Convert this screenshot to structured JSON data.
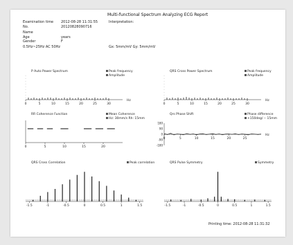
{
  "report": {
    "title": "Multi-functional Spectrum Analyzing ECG Report",
    "exam_label": "Examination time",
    "exam_value": "2012-08-28 11:31:55",
    "no_label": "No.",
    "no_value": "20120828090716",
    "name_label": "Name",
    "age_label": "Age",
    "age_value": "years",
    "gender_label": "Gender",
    "gender_value": "F",
    "interpretation_label": "Interpretation:",
    "filter_label": "0.5Hz~25Hz AC 50Hz",
    "calibration_label": "Gx: 5mm/mV Gy: 5mm/mV",
    "print_time": "Printing time: 2012-08-28 11:31:32"
  },
  "chart_data": [
    {
      "type": "bar",
      "title": "P Auto Power Spectrum",
      "legend": [
        "Peak frequency",
        "Amplitude"
      ],
      "xlim": [
        0,
        35
      ],
      "xlabel": "Hz",
      "x": [
        1,
        2,
        3,
        4,
        5,
        6,
        7,
        8,
        9,
        10,
        11,
        12,
        13,
        14,
        15,
        16,
        17,
        18,
        19,
        20,
        21,
        22,
        23,
        24,
        25,
        26,
        27,
        28,
        29,
        30
      ],
      "values": [
        3,
        2,
        3,
        2,
        2,
        3,
        2,
        3,
        3,
        2,
        3,
        2,
        2,
        3,
        2,
        3,
        2,
        2,
        3,
        2,
        2,
        3,
        2,
        2,
        3,
        2,
        2,
        2,
        3,
        2
      ],
      "ticks": [
        {
          "value": 0,
          "label": "0"
        },
        {
          "value": 5,
          "label": "5"
        },
        {
          "value": 10,
          "label": "10"
        },
        {
          "value": 15,
          "label": "15"
        },
        {
          "value": 20,
          "label": "20"
        },
        {
          "value": 25,
          "label": "25"
        },
        {
          "value": 30,
          "label": "30"
        }
      ]
    },
    {
      "type": "bar",
      "title": "QRS Cross Power Spectrum",
      "legend": [
        "Peak frequency",
        "Amplitude"
      ],
      "xlim": [
        0,
        35
      ],
      "xlabel": "Hz",
      "x": [
        1,
        2,
        3,
        4,
        5,
        6,
        7,
        8,
        9,
        10,
        11,
        12,
        13,
        14,
        15,
        16,
        17,
        18,
        19,
        20,
        21,
        22,
        23,
        24,
        25,
        26,
        27,
        28,
        29,
        30
      ],
      "values": [
        3,
        2,
        3,
        2,
        3,
        2,
        3,
        4,
        3,
        2,
        3,
        2,
        3,
        2,
        2,
        3,
        2,
        2,
        3,
        2,
        2,
        2,
        3,
        2,
        2,
        2,
        2,
        3,
        2,
        2
      ],
      "ticks": [
        {
          "value": 0,
          "label": "0"
        },
        {
          "value": 5,
          "label": "5"
        },
        {
          "value": 10,
          "label": "10"
        },
        {
          "value": 15,
          "label": "15"
        },
        {
          "value": 20,
          "label": "20"
        },
        {
          "value": 25,
          "label": "25"
        },
        {
          "value": 30,
          "label": "30"
        }
      ]
    },
    {
      "type": "line",
      "title": "RR Coherence Function",
      "legend": [
        "Mean Coherence",
        "Hz: 30mm/s  Rh: 15mm"
      ],
      "xlim": [
        0,
        25
      ],
      "ylim": [
        0,
        1
      ],
      "segments": [
        [
          0.5,
          2
        ],
        [
          3,
          4.5
        ],
        [
          5.5,
          7
        ],
        [
          9,
          11
        ],
        [
          15,
          17
        ],
        [
          18,
          20
        ],
        [
          21,
          23
        ]
      ],
      "level": 0.5,
      "ticks": [
        {
          "value": 0,
          "label": "0"
        },
        {
          "value": 5,
          "label": "5"
        },
        {
          "value": 10,
          "label": "10"
        },
        {
          "value": 15,
          "label": "15"
        },
        {
          "value": 20,
          "label": "20"
        }
      ]
    },
    {
      "type": "line",
      "title": "Qrs Phase Shift",
      "legend": [
        "Phase difference",
        "+150deg/ -- 15mm"
      ],
      "xlim": [
        0,
        30
      ],
      "ylim": [
        -180,
        180
      ],
      "xlabel": "Hz",
      "yticks": [
        {
          "value": 180,
          "label": "180"
        },
        {
          "value": 90,
          "label": "90"
        },
        {
          "value": 0,
          "label": "0"
        },
        {
          "value": -90,
          "label": "-90"
        },
        {
          "value": -180,
          "label": "-180"
        }
      ],
      "x": [
        0,
        1,
        2,
        3,
        4,
        5,
        6,
        7,
        8,
        9,
        10,
        11,
        12,
        13,
        14,
        15,
        16,
        17,
        18,
        19,
        20,
        21,
        22,
        23,
        24,
        25,
        26,
        27,
        28,
        29,
        30
      ],
      "values": [
        10,
        -5,
        15,
        -10,
        5,
        0,
        -8,
        12,
        -3,
        6,
        -10,
        4,
        8,
        -6,
        2,
        10,
        -4,
        6,
        -8,
        3,
        5,
        -2,
        8,
        -6,
        4,
        0,
        -10,
        6,
        2,
        -4,
        3
      ],
      "ticks": [
        {
          "value": 0,
          "label": "0"
        },
        {
          "value": 5,
          "label": "5"
        },
        {
          "value": 10,
          "label": "10"
        },
        {
          "value": 15,
          "label": "15"
        },
        {
          "value": 20,
          "label": "20"
        },
        {
          "value": 25,
          "label": "25"
        }
      ]
    },
    {
      "type": "bar",
      "title": "QRS Cross Correlation",
      "legend": [
        "Peak correlation"
      ],
      "xlim": [
        -1.6,
        1.6
      ],
      "x": [
        -1.4,
        -1.2,
        -1.0,
        -0.8,
        -0.6,
        -0.4,
        -0.2,
        0,
        0.2,
        0.4,
        0.6,
        0.8,
        1.0,
        1.2,
        1.4
      ],
      "values": [
        0.05,
        0.18,
        0.3,
        0.4,
        0.55,
        0.7,
        0.85,
        0.95,
        0.8,
        0.65,
        0.5,
        0.35,
        0.22,
        0.12,
        0.05
      ],
      "ticks": [
        {
          "value": -1.5,
          "label": "-1.5"
        },
        {
          "value": -1,
          "label": "-1"
        },
        {
          "value": -0.5,
          "label": "-0.5"
        },
        {
          "value": 0,
          "label": "0"
        },
        {
          "value": 0.5,
          "label": "0.5"
        },
        {
          "value": 1,
          "label": "1"
        },
        {
          "value": 1.5,
          "label": "1.5"
        }
      ]
    },
    {
      "type": "bar",
      "title": "QRS Pulse Symmetry",
      "legend": [
        "Symmetry"
      ],
      "xlim": [
        -1.6,
        1.6
      ],
      "x": [
        -1.4,
        -1.1,
        -0.8,
        -0.5,
        -0.3,
        -0.1,
        0,
        0.1,
        0.3,
        0.5,
        0.8,
        1.1,
        1.4
      ],
      "values": [
        0.06,
        0.05,
        0.08,
        0.06,
        0.1,
        0.15,
        0.95,
        0.15,
        0.08,
        0.07,
        0.05,
        0.06,
        0.05
      ],
      "ticks": [
        {
          "value": -1.5,
          "label": "-1.5"
        },
        {
          "value": -1,
          "label": "-1"
        },
        {
          "value": -0.5,
          "label": "-0.5"
        },
        {
          "value": 0,
          "label": "0"
        },
        {
          "value": 0.5,
          "label": "0.5"
        },
        {
          "value": 1,
          "label": "1"
        },
        {
          "value": 1.5,
          "label": "1.5"
        }
      ]
    }
  ]
}
